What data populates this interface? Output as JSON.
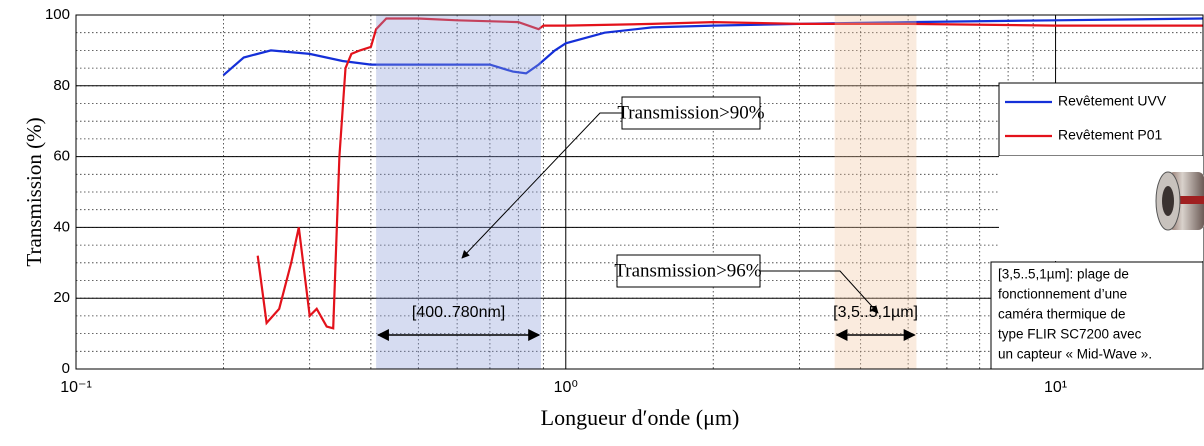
{
  "chart_data": {
    "type": "line",
    "xlabel": "Longueur d′onde (μm)",
    "ylabel": "Transmission (%)",
    "log_x": true,
    "xlim": [
      0.1,
      20
    ],
    "ylim": [
      0,
      100
    ],
    "xticks": [
      {
        "value": 0.1,
        "label": "10⁻¹"
      },
      {
        "value": 1,
        "label": "10⁰"
      },
      {
        "value": 10,
        "label": "10¹"
      }
    ],
    "yticks": [
      0,
      20,
      40,
      60,
      80,
      100
    ],
    "y_minor_step": 5,
    "x_minor_grid": true,
    "grid": true,
    "series": [
      {
        "name": "Revêtement UVV",
        "color": "#1530d8",
        "x": [
          0.2,
          0.22,
          0.25,
          0.3,
          0.35,
          0.4,
          0.5,
          0.6,
          0.7,
          0.78,
          0.83,
          0.88,
          0.95,
          1.0,
          1.2,
          1.5,
          2,
          3,
          5,
          10,
          20
        ],
        "values": [
          83,
          88,
          90,
          89,
          87,
          86,
          86,
          86,
          86,
          84,
          83.5,
          86,
          90,
          92,
          95,
          96.5,
          97,
          97.5,
          98,
          98.5,
          99
        ]
      },
      {
        "name": "Revêtement P01",
        "color": "#e3121b",
        "x": [
          0.235,
          0.245,
          0.26,
          0.275,
          0.285,
          0.3,
          0.31,
          0.325,
          0.335,
          0.345,
          0.355,
          0.365,
          0.38,
          0.4,
          0.41,
          0.43,
          0.5,
          0.6,
          0.8,
          0.88,
          0.9,
          1.0,
          1.5,
          2,
          3,
          5,
          10,
          20
        ],
        "values": [
          32,
          13,
          17,
          30,
          40,
          15,
          17,
          12,
          11.5,
          60,
          85,
          89,
          90,
          91,
          96,
          99,
          99,
          98.5,
          98,
          96,
          97,
          97,
          97.5,
          98,
          97.5,
          97.5,
          97,
          97
        ]
      }
    ],
    "bands": [
      {
        "x": [
          0.41,
          0.89
        ],
        "color": "#8a9ad8",
        "label": "[400..780nm]"
      },
      {
        "x": [
          3.54,
          5.2
        ],
        "color": "#f0c7a0",
        "label": "[3,5..5,1µm]"
      }
    ],
    "annotations": [
      "Transmission>90%",
      "Transmission>96%"
    ],
    "note": [
      "[3,5..5,1µm]: plage de",
      "fonctionnement d’une",
      "caméra thermique de",
      "type FLIR SC7200 avec",
      "un capteur « Mid-Wave »."
    ],
    "legend": "upper right"
  }
}
